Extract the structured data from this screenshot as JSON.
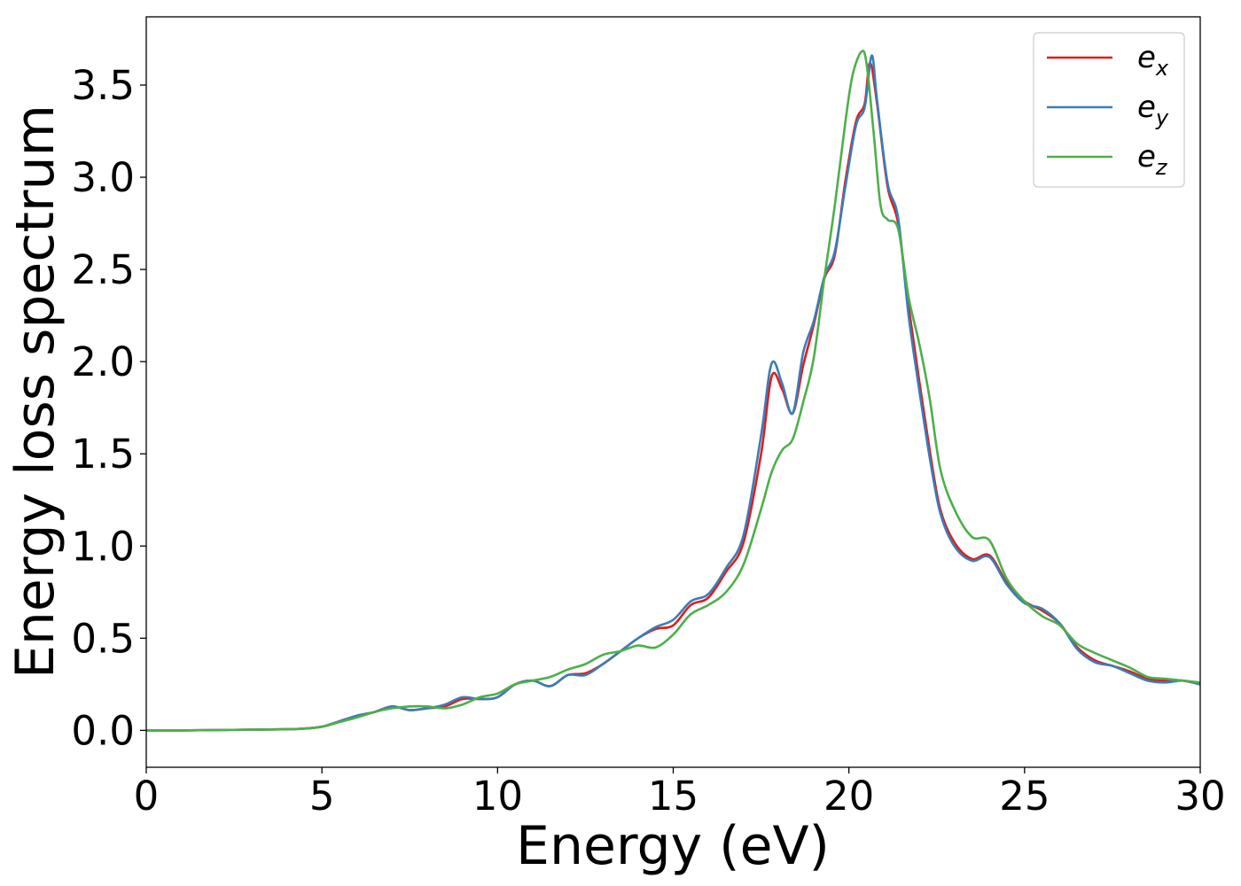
{
  "chart_data": {
    "type": "line",
    "title": "",
    "xlabel": "Energy (eV)",
    "ylabel": "Energy loss spectrum",
    "xlim": [
      0,
      30
    ],
    "ylim": [
      -0.2,
      3.87
    ],
    "xticks": [
      0,
      5,
      10,
      15,
      20,
      25,
      30
    ],
    "xtick_labels": [
      "0",
      "5",
      "10",
      "15",
      "20",
      "25",
      "30"
    ],
    "yticks": [
      0.0,
      0.5,
      1.0,
      1.5,
      2.0,
      2.5,
      3.0,
      3.5
    ],
    "ytick_labels": [
      "0.0",
      "0.5",
      "1.0",
      "1.5",
      "2.0",
      "2.5",
      "3.0",
      "3.5"
    ],
    "grid": false,
    "legend_position": "top-right",
    "series": [
      {
        "name": "e",
        "subscript": "x",
        "color": "#e41a1c",
        "x": [
          0,
          1,
          2,
          3,
          4,
          4.5,
          5,
          5.5,
          6,
          6.5,
          7,
          7.5,
          8,
          8.5,
          9,
          9.5,
          10,
          10.5,
          11,
          11.5,
          12,
          12.5,
          13,
          13.5,
          14,
          14.5,
          15,
          15.5,
          16,
          16.5,
          17,
          17.5,
          17.8,
          18.1,
          18.4,
          18.7,
          19,
          19.3,
          19.6,
          19.9,
          20.2,
          20.45,
          20.6,
          20.8,
          21.1,
          21.4,
          21.7,
          22,
          22.3,
          22.6,
          23,
          23.5,
          24,
          24.5,
          25,
          25.5,
          26,
          26.5,
          27,
          27.5,
          28,
          28.5,
          29,
          29.5,
          30
        ],
        "y": [
          0,
          0,
          0.002,
          0.004,
          0.006,
          0.01,
          0.02,
          0.05,
          0.08,
          0.1,
          0.13,
          0.11,
          0.12,
          0.13,
          0.17,
          0.17,
          0.18,
          0.25,
          0.27,
          0.24,
          0.3,
          0.31,
          0.36,
          0.43,
          0.5,
          0.55,
          0.57,
          0.68,
          0.72,
          0.86,
          1.02,
          1.5,
          1.92,
          1.85,
          1.72,
          1.98,
          2.2,
          2.45,
          2.58,
          2.98,
          3.3,
          3.4,
          3.62,
          3.4,
          2.95,
          2.75,
          2.3,
          1.9,
          1.52,
          1.2,
          1.02,
          0.93,
          0.95,
          0.8,
          0.7,
          0.65,
          0.58,
          0.45,
          0.38,
          0.35,
          0.32,
          0.28,
          0.27,
          0.27,
          0.25
        ]
      },
      {
        "name": "e",
        "subscript": "y",
        "color": "#377eb8",
        "x": [
          0,
          1,
          2,
          3,
          4,
          4.5,
          5,
          5.5,
          6,
          6.5,
          7,
          7.5,
          8,
          8.5,
          9,
          9.5,
          10,
          10.5,
          11,
          11.5,
          12,
          12.5,
          13,
          13.5,
          14,
          14.5,
          15,
          15.5,
          16,
          16.5,
          17,
          17.5,
          17.8,
          18.1,
          18.4,
          18.7,
          19,
          19.3,
          19.6,
          19.9,
          20.2,
          20.45,
          20.65,
          20.8,
          21.1,
          21.4,
          21.7,
          22,
          22.3,
          22.6,
          23,
          23.5,
          24,
          24.5,
          25,
          25.5,
          26,
          26.5,
          27,
          27.5,
          28,
          28.5,
          29,
          29.5,
          30
        ],
        "y": [
          0,
          0,
          0.002,
          0.004,
          0.006,
          0.01,
          0.02,
          0.05,
          0.08,
          0.1,
          0.13,
          0.11,
          0.12,
          0.14,
          0.18,
          0.17,
          0.18,
          0.25,
          0.27,
          0.24,
          0.3,
          0.3,
          0.36,
          0.43,
          0.5,
          0.56,
          0.6,
          0.7,
          0.74,
          0.88,
          1.06,
          1.6,
          1.99,
          1.88,
          1.72,
          2.05,
          2.22,
          2.46,
          2.6,
          2.95,
          3.28,
          3.38,
          3.66,
          3.42,
          2.97,
          2.78,
          2.25,
          1.85,
          1.48,
          1.18,
          1.0,
          0.92,
          0.94,
          0.79,
          0.69,
          0.66,
          0.58,
          0.44,
          0.37,
          0.35,
          0.31,
          0.27,
          0.26,
          0.27,
          0.25
        ]
      },
      {
        "name": "e",
        "subscript": "z",
        "color": "#4daf4a",
        "x": [
          0,
          1,
          2,
          3,
          4,
          4.5,
          5,
          5.5,
          6,
          6.5,
          7,
          7.5,
          8,
          8.5,
          9,
          9.5,
          10,
          10.5,
          11,
          11.5,
          12,
          12.5,
          13,
          13.5,
          14,
          14.5,
          15,
          15.5,
          16,
          16.5,
          17,
          17.5,
          17.8,
          18.1,
          18.4,
          18.7,
          19,
          19.3,
          19.6,
          19.9,
          20.1,
          20.35,
          20.5,
          20.7,
          20.9,
          21.1,
          21.4,
          21.7,
          22,
          22.3,
          22.6,
          23,
          23.5,
          24,
          24.5,
          25,
          25.5,
          26,
          26.5,
          27,
          27.5,
          28,
          28.5,
          29,
          29.5,
          30
        ],
        "y": [
          0,
          0,
          0.002,
          0.004,
          0.006,
          0.01,
          0.02,
          0.045,
          0.07,
          0.1,
          0.12,
          0.13,
          0.13,
          0.12,
          0.14,
          0.18,
          0.2,
          0.25,
          0.27,
          0.29,
          0.33,
          0.36,
          0.41,
          0.43,
          0.46,
          0.45,
          0.52,
          0.63,
          0.68,
          0.75,
          0.9,
          1.2,
          1.4,
          1.52,
          1.58,
          1.78,
          2.02,
          2.45,
          2.85,
          3.3,
          3.55,
          3.68,
          3.62,
          3.25,
          2.85,
          2.77,
          2.72,
          2.35,
          2.1,
          1.8,
          1.42,
          1.2,
          1.05,
          1.03,
          0.82,
          0.7,
          0.62,
          0.57,
          0.47,
          0.42,
          0.38,
          0.34,
          0.29,
          0.28,
          0.27,
          0.26
        ]
      }
    ]
  }
}
